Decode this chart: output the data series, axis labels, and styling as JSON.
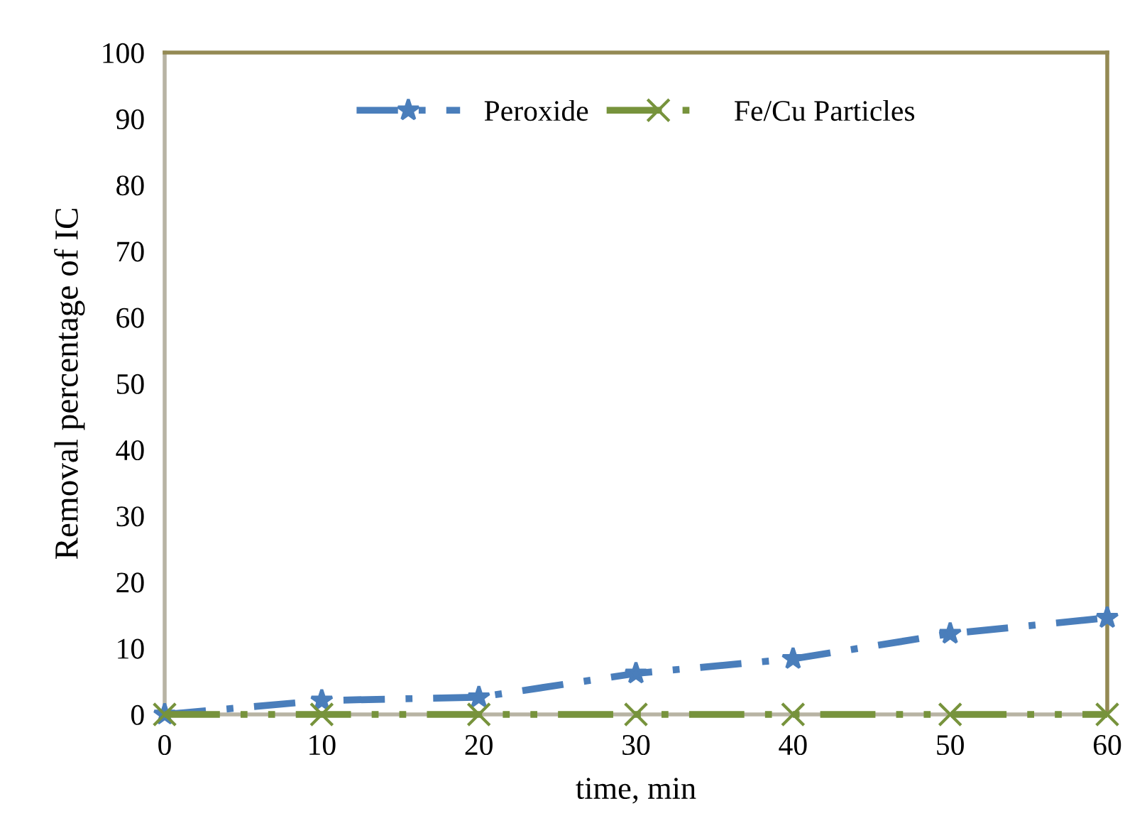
{
  "chart_data": {
    "type": "line",
    "xlabel": "time, min",
    "ylabel": "Removal percentage of IC",
    "x": [
      0,
      10,
      20,
      30,
      40,
      50,
      60
    ],
    "series": [
      {
        "name": "Peroxide",
        "color": "#4a7ebb",
        "marker": "star",
        "line_style": "dashed",
        "values": [
          0,
          2.1,
          2.6,
          6.2,
          8.4,
          12.2,
          14.6
        ]
      },
      {
        "name": "Fe/Cu Particles",
        "color": "#77933c",
        "marker": "cross",
        "line_style": "dotted",
        "values": [
          0,
          0,
          0,
          0,
          0,
          0,
          0
        ]
      }
    ],
    "xlim": [
      0,
      60
    ],
    "xticks": [
      0,
      10,
      20,
      30,
      40,
      50,
      60
    ],
    "ylim": [
      0,
      100
    ],
    "yticks": [
      0,
      10,
      20,
      30,
      40,
      50,
      60,
      70,
      80,
      90,
      100
    ],
    "grid": false,
    "legend": "top"
  }
}
